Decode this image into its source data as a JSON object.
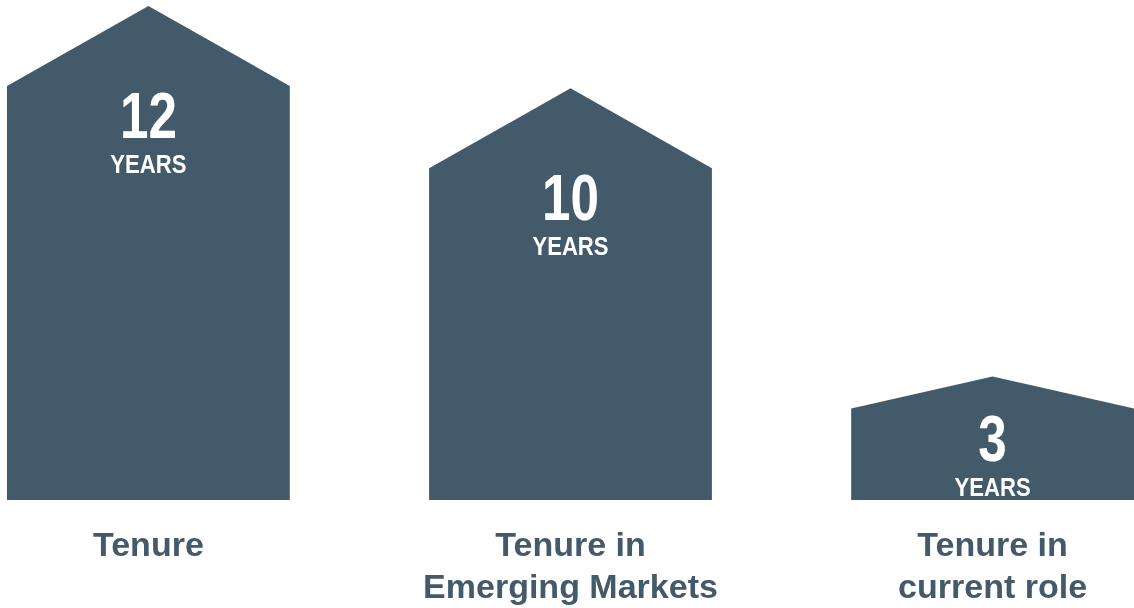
{
  "chart_data": {
    "type": "bar",
    "categories": [
      "Tenure",
      "Tenure in Emerging Markets",
      "Tenure in current role"
    ],
    "values": [
      12,
      10,
      3
    ],
    "color": "#435a6b",
    "value_labels": [
      "12 YEARS",
      "10 YEARS",
      "3 YEARS"
    ]
  }
}
